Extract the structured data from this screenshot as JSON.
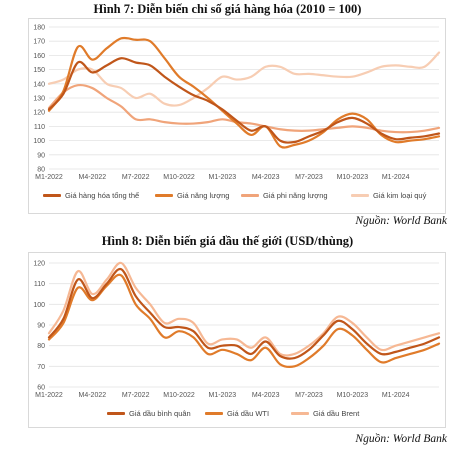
{
  "chart_data": [
    {
      "type": "line",
      "title": "Hình 7: Diễn biến chỉ số giá hàng hóa (2010 = 100)",
      "source": "Nguồn: World Bank",
      "ylim": [
        80,
        180
      ],
      "yticks": [
        80,
        90,
        100,
        110,
        120,
        130,
        140,
        150,
        160,
        170,
        180
      ],
      "grid": true,
      "legend_position": "bottom",
      "x_tick_labels": [
        "M1-2022",
        "M4-2022",
        "M7-2022",
        "M10-2022",
        "M1-2023",
        "M4-2023",
        "M7-2023",
        "M10-2023",
        "M1-2024"
      ],
      "x": [
        "M1-2022",
        "M2-2022",
        "M3-2022",
        "M4-2022",
        "M5-2022",
        "M6-2022",
        "M7-2022",
        "M8-2022",
        "M9-2022",
        "M10-2022",
        "M11-2022",
        "M12-2022",
        "M1-2023",
        "M2-2023",
        "M3-2023",
        "M4-2023",
        "M5-2023",
        "M6-2023",
        "M7-2023",
        "M8-2023",
        "M9-2023",
        "M10-2023",
        "M11-2023",
        "M12-2023",
        "M1-2024",
        "M2-2024",
        "M3-2024",
        "M4-2024"
      ],
      "series": [
        {
          "name": "Giá hàng hóa tổng thể",
          "color": "#c0561a",
          "values": [
            122,
            133,
            155,
            148,
            153,
            158,
            155,
            153,
            145,
            138,
            132,
            128,
            122,
            114,
            107,
            110,
            100,
            99,
            103,
            107,
            113,
            116,
            112,
            105,
            101,
            102,
            103,
            105
          ]
        },
        {
          "name": "Giá năng lượng",
          "color": "#e07b2a",
          "values": [
            121,
            135,
            166,
            157,
            165,
            172,
            171,
            170,
            158,
            145,
            138,
            130,
            121,
            112,
            104,
            110,
            96,
            97,
            100,
            106,
            115,
            119,
            115,
            104,
            99,
            100,
            101,
            103
          ]
        },
        {
          "name": "Giá phi năng lượng",
          "color": "#f0a47a",
          "values": [
            123,
            134,
            139,
            137,
            130,
            124,
            115,
            115,
            113,
            112,
            112,
            113,
            115,
            113,
            112,
            110,
            108,
            107,
            107,
            108,
            109,
            110,
            109,
            107,
            106,
            106,
            107,
            109
          ]
        },
        {
          "name": "Giá kim loại quý",
          "color": "#f7cdb3",
          "values": [
            140,
            143,
            150,
            150,
            140,
            137,
            130,
            133,
            126,
            125,
            130,
            137,
            145,
            143,
            145,
            152,
            152,
            147,
            147,
            146,
            145,
            145,
            148,
            152,
            153,
            152,
            152,
            162
          ]
        }
      ]
    },
    {
      "type": "line",
      "title": "Hình 8: Diễn biến giá dầu thế giới (USD/thùng)",
      "source": "Nguồn: World Bank",
      "ylim": [
        60,
        120
      ],
      "yticks": [
        60,
        70,
        80,
        90,
        100,
        110,
        120
      ],
      "grid": true,
      "legend_position": "bottom",
      "x_tick_labels": [
        "M1-2022",
        "M4-2022",
        "M7-2022",
        "M10-2022",
        "M1-2023",
        "M4-2023",
        "M7-2023",
        "M10-2023",
        "M1-2024"
      ],
      "x": [
        "M1-2022",
        "M2-2022",
        "M3-2022",
        "M4-2022",
        "M5-2022",
        "M6-2022",
        "M7-2022",
        "M8-2022",
        "M9-2022",
        "M10-2022",
        "M11-2022",
        "M12-2022",
        "M1-2023",
        "M2-2023",
        "M3-2023",
        "M4-2023",
        "M5-2023",
        "M6-2023",
        "M7-2023",
        "M8-2023",
        "M9-2023",
        "M10-2023",
        "M11-2023",
        "M12-2023",
        "M1-2024",
        "M2-2024",
        "M3-2024",
        "M4-2024"
      ],
      "series": [
        {
          "name": "Giá dầu bình quân",
          "color": "#c0561a",
          "values": [
            84,
            93,
            112,
            103,
            110,
            117,
            104,
            96,
            89,
            89,
            87,
            79,
            80,
            80,
            76,
            82,
            75,
            74,
            78,
            85,
            92,
            88,
            81,
            76,
            77,
            79,
            81,
            84
          ]
        },
        {
          "name": "Giá dầu WTI",
          "color": "#e07b2a",
          "values": [
            83,
            91,
            108,
            102,
            109,
            114,
            100,
            93,
            84,
            87,
            84,
            76,
            78,
            76,
            73,
            79,
            71,
            70,
            74,
            80,
            88,
            85,
            78,
            72,
            74,
            76,
            78,
            81
          ]
        },
        {
          "name": "Giá dầu Brent",
          "color": "#f6b894",
          "values": [
            86,
            97,
            116,
            105,
            112,
            120,
            108,
            100,
            91,
            93,
            91,
            81,
            83,
            83,
            79,
            84,
            76,
            76,
            80,
            86,
            94,
            91,
            84,
            78,
            80,
            82,
            84,
            86
          ]
        }
      ]
    }
  ]
}
